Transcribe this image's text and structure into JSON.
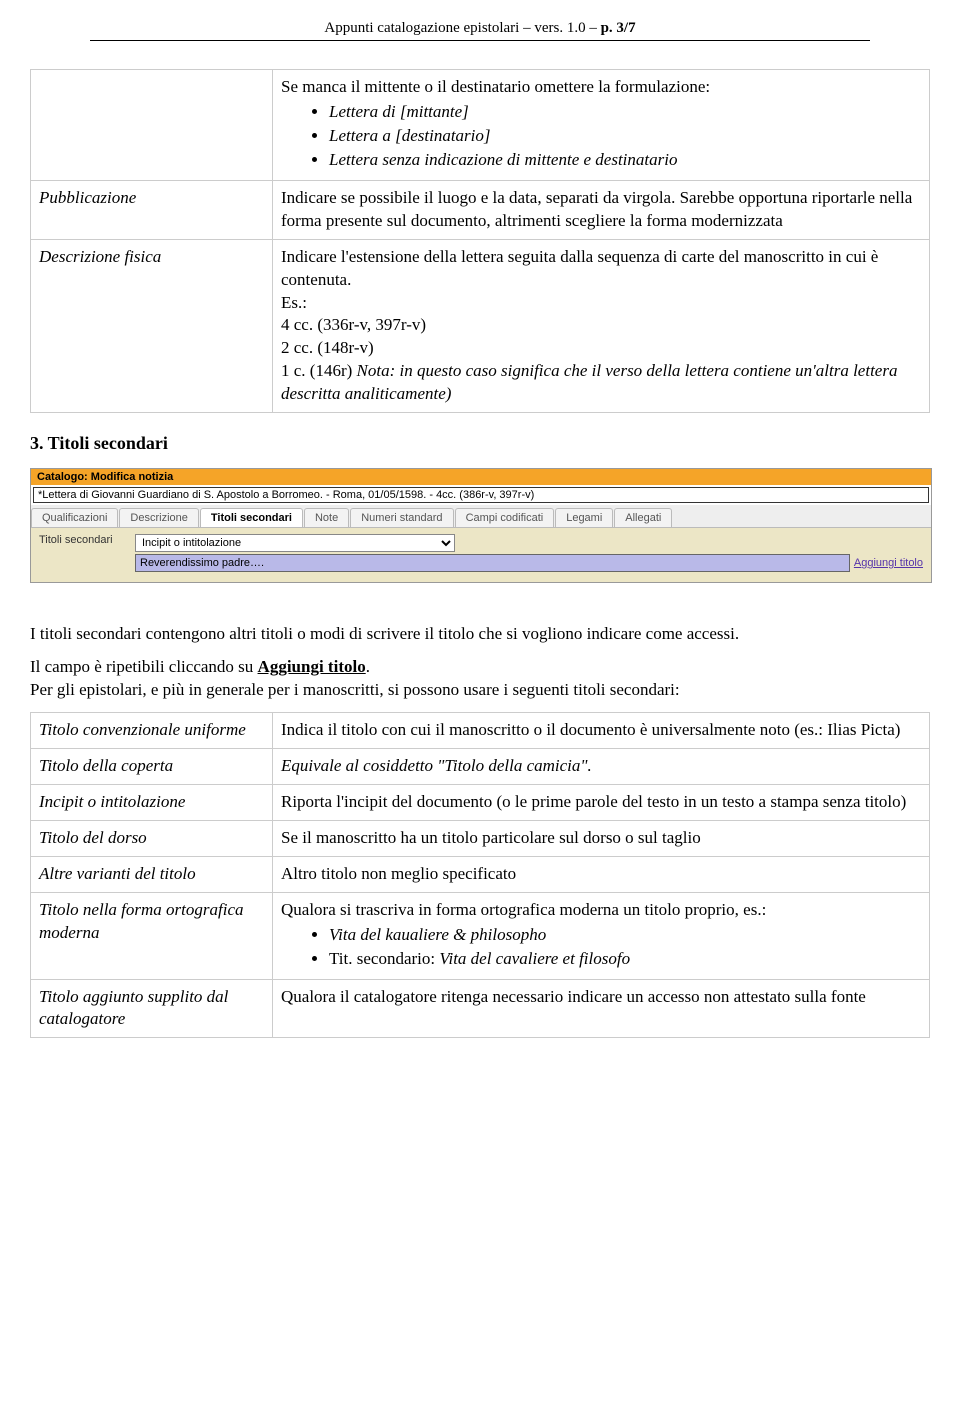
{
  "header": {
    "prefix": "Appunti catalogazione epistolari – vers. 1.0 – ",
    "page_bold": "p. 3/7"
  },
  "table1": {
    "row0": {
      "intro": "Se manca il mittente o il destinatario omettere la formulazione:",
      "b1": "Lettera di [mittante]",
      "b2": "Lettera a [destinatario]",
      "b3": "Lettera senza indicazione di mittente e destinatario"
    },
    "row1": {
      "label": "Pubblicazione",
      "text": "Indicare se possibile il luogo e la data, separati da virgola. Sarebbe opportuna riportarle nella forma presente sul documento, altrimenti scegliere la forma modernizzata"
    },
    "row2": {
      "label": "Descrizione fisica",
      "line1": "Indicare l'estensione della lettera seguita dalla sequenza di carte del manoscritto in cui è contenuta.",
      "line2": "Es.:",
      "line3": "4 cc. (336r-v, 397r-v)",
      "line4": "2 cc. (148r-v)",
      "line5a": "1 c. (146r) ",
      "line5b": "Nota: in questo caso significa che il verso della lettera contiene un'altra lettera descritta analiticamente)"
    }
  },
  "section_title": "3. Titoli secondari",
  "ui": {
    "titlebar": "Catalogo: Modifica notizia",
    "titlefield": "*Lettera di Giovanni Guardiano di S. Apostolo a Borromeo. - Roma, 01/05/1598. - 4cc. (386r-v, 397r-v)",
    "tabs": {
      "t0": "Qualificazioni",
      "t1": "Descrizione",
      "t2": "Titoli secondari",
      "t3": "Note",
      "t4": "Numeri standard",
      "t5": "Campi codificati",
      "t6": "Legami",
      "t7": "Allegati"
    },
    "body": {
      "label": "Titoli secondari",
      "select_value": "Incipit o intitolazione",
      "input_value": "Reverendissimo padre….",
      "link": "Aggiungi titolo"
    }
  },
  "para1": "I titoli secondari contengono altri titoli o modi di scrivere il titolo che si vogliono indicare come accessi.",
  "para2a": "Il campo è ripetibili cliccando su ",
  "para2b": "Aggiungi titolo",
  "para2c": ".",
  "para3": "Per gli epistolari, e più in generale per i manoscritti, si possono usare i seguenti titoli secondari:",
  "table2": {
    "r0": {
      "label": "Titolo convenzionale uniforme",
      "text": "Indica il titolo con cui il manoscritto o il documento è universalmente noto (es.: Ilias Picta)"
    },
    "r1": {
      "label": "Titolo della coperta",
      "text": "Equivale al cosiddetto \"Titolo della camicia\"."
    },
    "r2": {
      "label": "Incipit o intitolazione",
      "text": "Riporta l'incipit del documento (o le prime parole del testo in un testo a stampa senza titolo)"
    },
    "r3": {
      "label": "Titolo del dorso",
      "text": "Se il manoscritto ha un titolo particolare sul dorso o sul taglio"
    },
    "r4": {
      "label": "Altre varianti del titolo",
      "text": "Altro titolo non meglio specificato"
    },
    "r5": {
      "label": "Titolo nella forma ortografica moderna",
      "text": "Qualora si trascriva in forma ortografica moderna un titolo proprio, es.:",
      "b1": "Vita del kaualiere & philosopho",
      "b2a": "Tit. secondario: ",
      "b2b": "Vita del cavaliere et filosofo"
    },
    "r6": {
      "label": "Titolo aggiunto supplito dal catalogatore",
      "text": "Qualora il catalogatore ritenga necessario indicare un accesso non attestato sulla fonte"
    }
  }
}
